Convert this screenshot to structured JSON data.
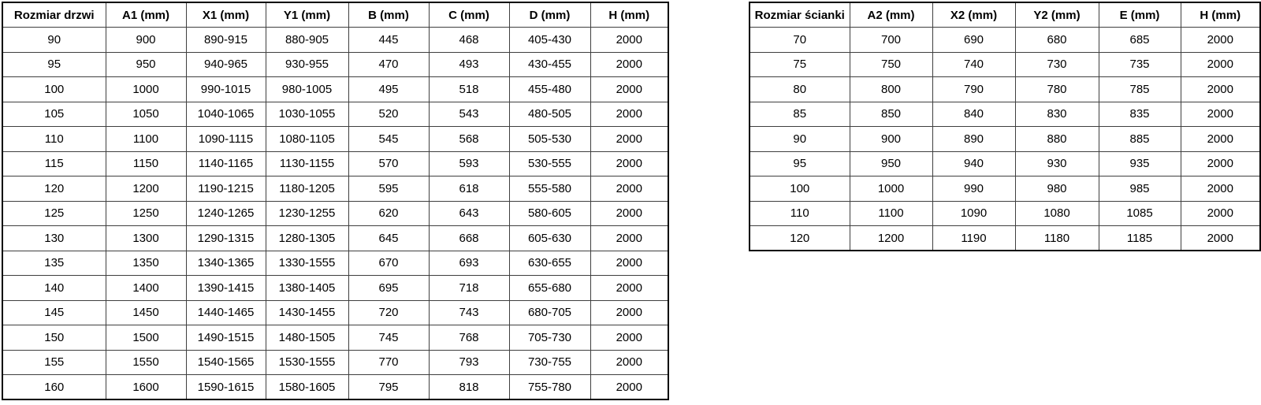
{
  "colors": {
    "background": "#ffffff",
    "text": "#000000",
    "table_border": "#000000",
    "grid_line": "#3f3f3f"
  },
  "tables": [
    {
      "name": "door-size-table",
      "headers": [
        "Rozmiar drzwi",
        "A1 (mm)",
        "X1 (mm)",
        "Y1 (mm)",
        "B (mm)",
        "C (mm)",
        "D (mm)",
        "H (mm)"
      ],
      "rows": [
        [
          "90",
          "900",
          "890-915",
          "880-905",
          "445",
          "468",
          "405-430",
          "2000"
        ],
        [
          "95",
          "950",
          "940-965",
          "930-955",
          "470",
          "493",
          "430-455",
          "2000"
        ],
        [
          "100",
          "1000",
          "990-1015",
          "980-1005",
          "495",
          "518",
          "455-480",
          "2000"
        ],
        [
          "105",
          "1050",
          "1040-1065",
          "1030-1055",
          "520",
          "543",
          "480-505",
          "2000"
        ],
        [
          "110",
          "1100",
          "1090-1115",
          "1080-1105",
          "545",
          "568",
          "505-530",
          "2000"
        ],
        [
          "115",
          "1150",
          "1140-1165",
          "1130-1155",
          "570",
          "593",
          "530-555",
          "2000"
        ],
        [
          "120",
          "1200",
          "1190-1215",
          "1180-1205",
          "595",
          "618",
          "555-580",
          "2000"
        ],
        [
          "125",
          "1250",
          "1240-1265",
          "1230-1255",
          "620",
          "643",
          "580-605",
          "2000"
        ],
        [
          "130",
          "1300",
          "1290-1315",
          "1280-1305",
          "645",
          "668",
          "605-630",
          "2000"
        ],
        [
          "135",
          "1350",
          "1340-1365",
          "1330-1555",
          "670",
          "693",
          "630-655",
          "2000"
        ],
        [
          "140",
          "1400",
          "1390-1415",
          "1380-1405",
          "695",
          "718",
          "655-680",
          "2000"
        ],
        [
          "145",
          "1450",
          "1440-1465",
          "1430-1455",
          "720",
          "743",
          "680-705",
          "2000"
        ],
        [
          "150",
          "1500",
          "1490-1515",
          "1480-1505",
          "745",
          "768",
          "705-730",
          "2000"
        ],
        [
          "155",
          "1550",
          "1540-1565",
          "1530-1555",
          "770",
          "793",
          "730-755",
          "2000"
        ],
        [
          "160",
          "1600",
          "1590-1615",
          "1580-1605",
          "795",
          "818",
          "755-780",
          "2000"
        ]
      ]
    },
    {
      "name": "wall-size-table",
      "headers": [
        "Rozmiar ścianki",
        "A2 (mm)",
        "X2 (mm)",
        "Y2 (mm)",
        "E (mm)",
        "H (mm)"
      ],
      "rows": [
        [
          "70",
          "700",
          "690",
          "680",
          "685",
          "2000"
        ],
        [
          "75",
          "750",
          "740",
          "730",
          "735",
          "2000"
        ],
        [
          "80",
          "800",
          "790",
          "780",
          "785",
          "2000"
        ],
        [
          "85",
          "850",
          "840",
          "830",
          "835",
          "2000"
        ],
        [
          "90",
          "900",
          "890",
          "880",
          "885",
          "2000"
        ],
        [
          "95",
          "950",
          "940",
          "930",
          "935",
          "2000"
        ],
        [
          "100",
          "1000",
          "990",
          "980",
          "985",
          "2000"
        ],
        [
          "110",
          "1100",
          "1090",
          "1080",
          "1085",
          "2000"
        ],
        [
          "120",
          "1200",
          "1190",
          "1180",
          "1185",
          "2000"
        ]
      ]
    }
  ]
}
